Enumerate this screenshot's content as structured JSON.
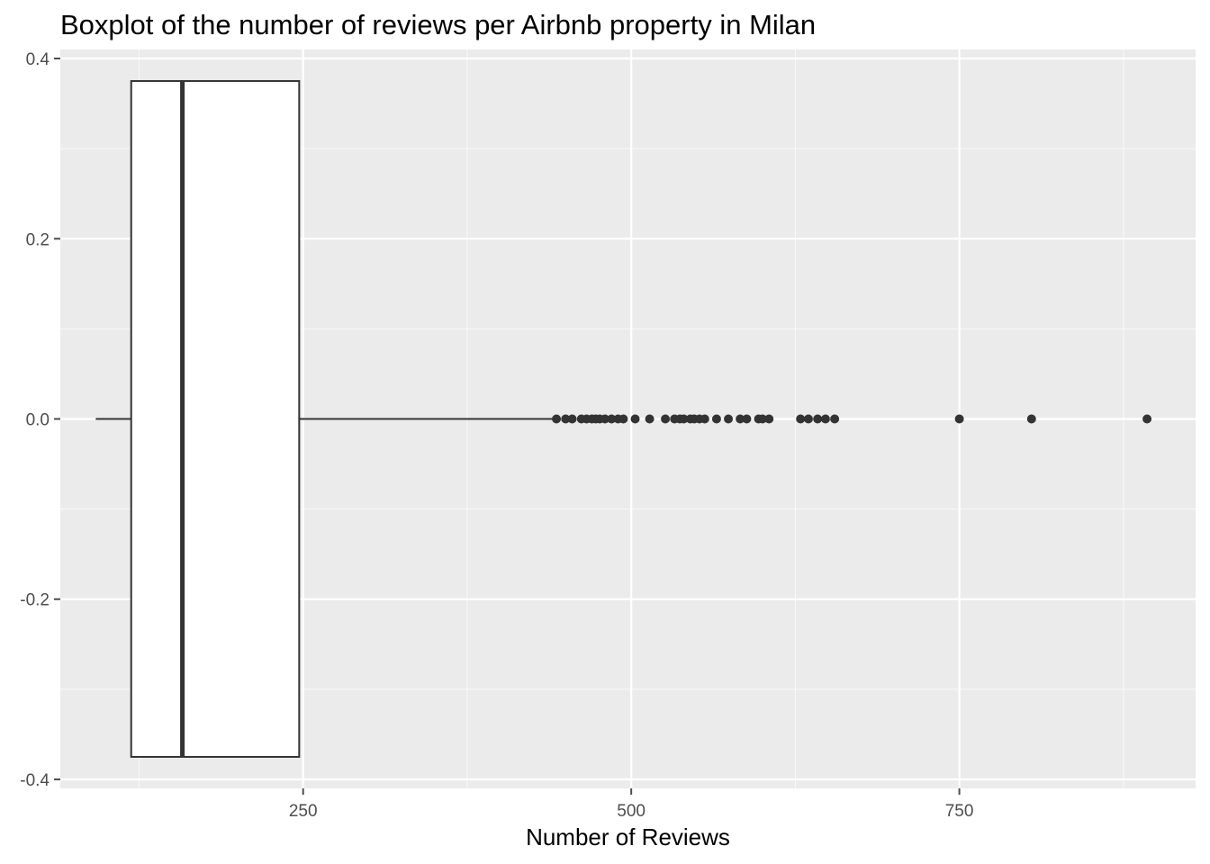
{
  "chart_data": {
    "type": "boxplot",
    "title": "Boxplot of the number of reviews per Airbnb property in Milan",
    "xlabel": "Number of Reviews",
    "ylabel": "",
    "xlim": [
      65,
      930
    ],
    "ylim": [
      -0.41,
      0.41
    ],
    "x_ticks": [
      250,
      500,
      750
    ],
    "x_tick_labels": [
      "250",
      "500",
      "750"
    ],
    "y_ticks": [
      -0.4,
      -0.2,
      0.0,
      0.2,
      0.4
    ],
    "y_tick_labels": [
      "-0.4",
      "-0.2",
      "0.0",
      "0.2",
      "0.4"
    ],
    "grid": true,
    "box": {
      "whisker_low": 92,
      "q1": 119,
      "median": 158,
      "q3": 247,
      "whisker_high": 443,
      "y_center": 0.0,
      "half_width": 0.375
    },
    "outliers": [
      443,
      450,
      455,
      462,
      466,
      470,
      473,
      476,
      480,
      485,
      490,
      494,
      503,
      514,
      526,
      533,
      537,
      540,
      545,
      548,
      552,
      556,
      565,
      574,
      583,
      588,
      597,
      600,
      605,
      629,
      635,
      642,
      648,
      655,
      750,
      805,
      893
    ]
  },
  "colors": {
    "panel_background": "#ebebeb",
    "grid_major": "#ffffff",
    "box_fill": "#ffffff",
    "box_stroke": "#333333",
    "point": "#333333",
    "tick_text": "#4d4d4d"
  }
}
